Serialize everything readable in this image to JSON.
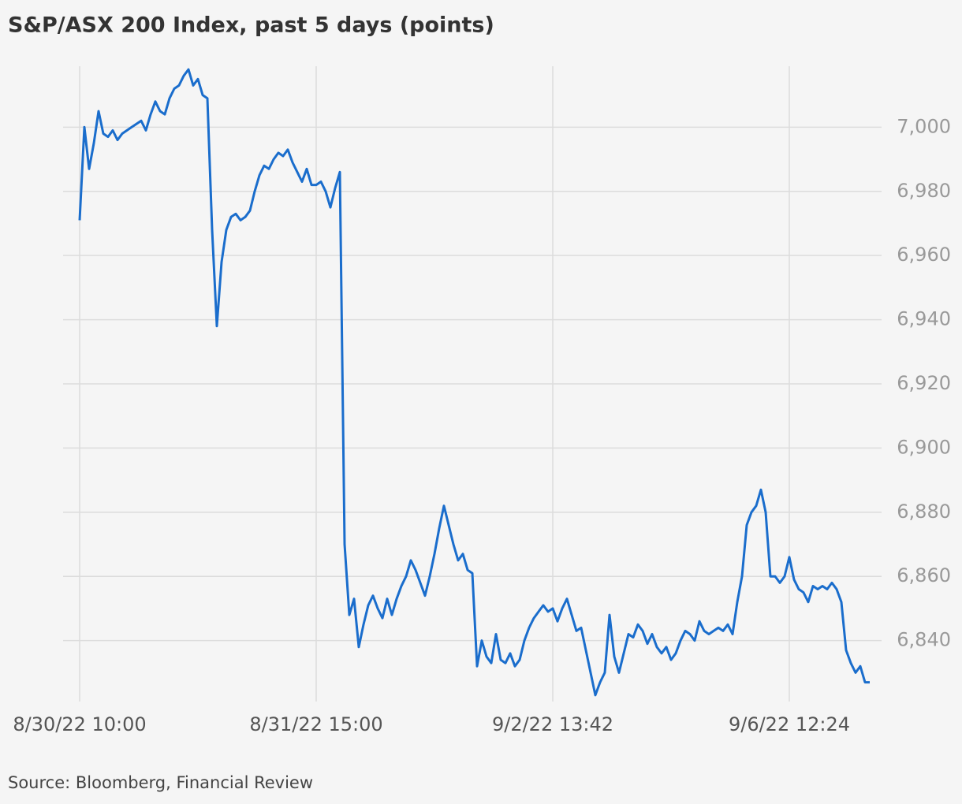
{
  "chart_data": {
    "type": "line",
    "title": "S&P/ASX 200 Index, past 5 days (points)",
    "source": "Source: Bloomberg, Financial Review",
    "color": "#1a6dcc",
    "grid": true,
    "categories": [
      "8/30/22 10:00",
      null,
      null,
      null,
      null,
      null,
      null,
      null,
      null,
      null,
      null,
      null,
      null,
      null,
      null,
      null,
      null,
      null,
      null,
      null,
      null,
      null,
      null,
      null,
      null,
      null,
      null,
      null,
      null,
      null,
      null,
      null,
      null,
      null,
      null,
      null,
      null,
      null,
      null,
      null,
      null,
      null,
      null,
      null,
      null,
      null,
      null,
      null,
      null,
      null,
      "8/31/22 15:00",
      null,
      null,
      null,
      null,
      null,
      null,
      null,
      null,
      null,
      null,
      null,
      null,
      null,
      null,
      null,
      null,
      null,
      null,
      null,
      null,
      null,
      null,
      null,
      null,
      null,
      null,
      null,
      null,
      null,
      null,
      null,
      null,
      null,
      null,
      null,
      null,
      null,
      null,
      null,
      null,
      null,
      null,
      null,
      null,
      null,
      null,
      null,
      null,
      null,
      "9/2/22 13:42",
      null,
      null,
      null,
      null,
      null,
      null,
      null,
      null,
      null,
      null,
      null,
      null,
      null,
      null,
      null,
      null,
      null,
      null,
      null,
      null,
      null,
      null,
      null,
      null,
      null,
      null,
      null,
      null,
      null,
      null,
      null,
      null,
      null,
      null,
      null,
      null,
      null,
      null,
      null,
      null,
      null,
      null,
      null,
      null,
      null,
      null,
      null,
      null,
      null,
      "9/6/22 12:24",
      null,
      null,
      null,
      null,
      null,
      null,
      null,
      null,
      null,
      null,
      null,
      null,
      null,
      null,
      null,
      null,
      null
    ],
    "values": [
      6971,
      7000,
      6987,
      6995,
      7005,
      6998,
      6997,
      6999,
      6996,
      6998,
      6999,
      7000,
      7001,
      7002,
      6999,
      7004,
      7008,
      7005,
      7004,
      7009,
      7012,
      7013,
      7016,
      7018,
      7013,
      7015,
      7010,
      7009,
      6968,
      6938,
      6958,
      6968,
      6972,
      6973,
      6971,
      6972,
      6974,
      6980,
      6985,
      6988,
      6987,
      6990,
      6992,
      6991,
      6993,
      6989,
      6986,
      6983,
      6987,
      6982,
      6982,
      6983,
      6980,
      6975,
      6981,
      6986,
      6870,
      6848,
      6853,
      6838,
      6845,
      6851,
      6854,
      6850,
      6847,
      6853,
      6848,
      6853,
      6857,
      6860,
      6865,
      6862,
      6858,
      6854,
      6860,
      6867,
      6875,
      6882,
      6876,
      6870,
      6865,
      6867,
      6862,
      6861,
      6832,
      6840,
      6835,
      6833,
      6842,
      6834,
      6833,
      6836,
      6832,
      6834,
      6840,
      6844,
      6847,
      6849,
      6851,
      6849,
      6850,
      6846,
      6850,
      6853,
      6848,
      6843,
      6844,
      6837,
      6830,
      6823,
      6827,
      6830,
      6848,
      6835,
      6830,
      6836,
      6842,
      6841,
      6845,
      6843,
      6839,
      6842,
      6838,
      6836,
      6838,
      6834,
      6836,
      6840,
      6843,
      6842,
      6840,
      6846,
      6843,
      6842,
      6843,
      6844,
      6843,
      6845,
      6842,
      6852,
      6860,
      6876,
      6880,
      6882,
      6887,
      6880,
      6860,
      6860,
      6858,
      6860,
      6866,
      6859,
      6856,
      6855,
      6852,
      6857,
      6856,
      6857,
      6856,
      6858,
      6856,
      6852,
      6837,
      6833,
      6830,
      6832,
      6827,
      6827
    ],
    "ylim": [
      6821,
      7019
    ],
    "yticks": [
      {
        "value": 6840,
        "label": "6,840"
      },
      {
        "value": 6860,
        "label": "6,860"
      },
      {
        "value": 6880,
        "label": "6,880"
      },
      {
        "value": 6900,
        "label": "6,900"
      },
      {
        "value": 6920,
        "label": "6,920"
      },
      {
        "value": 6940,
        "label": "6,940"
      },
      {
        "value": 6960,
        "label": "6,960"
      },
      {
        "value": 6980,
        "label": "6,980"
      },
      {
        "value": 7000,
        "label": "7,000"
      }
    ]
  }
}
